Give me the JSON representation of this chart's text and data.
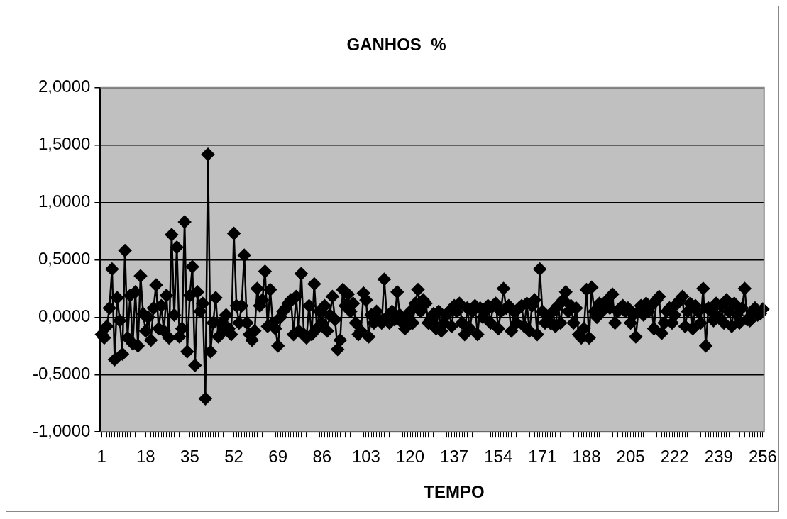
{
  "chart_data": {
    "type": "line",
    "title": "GANHOS  %",
    "xlabel": "TEMPO",
    "categories": [
      "1",
      null,
      null,
      null,
      null,
      null,
      null,
      null,
      null,
      null,
      null,
      null,
      null,
      null,
      null,
      null,
      null,
      "18",
      null,
      null,
      null,
      null,
      null,
      null,
      null,
      null,
      null,
      null,
      null,
      null,
      null,
      null,
      null,
      null,
      "35",
      null,
      null,
      null,
      null,
      null,
      null,
      null,
      null,
      null,
      null,
      null,
      null,
      null,
      null,
      null,
      null,
      "52",
      null,
      null,
      null,
      null,
      null,
      null,
      null,
      null,
      null,
      null,
      null,
      null,
      null,
      null,
      null,
      null,
      "69",
      null,
      null,
      null,
      null,
      null,
      null,
      null,
      null,
      null,
      null,
      null,
      null,
      null,
      null,
      null,
      null,
      "86",
      null,
      null,
      null,
      null,
      null,
      null,
      null,
      null,
      null,
      null,
      null,
      null,
      null,
      null,
      null,
      null,
      "103",
      null,
      null,
      null,
      null,
      null,
      null,
      null,
      null,
      null,
      null,
      null,
      null,
      null,
      null,
      null,
      null,
      "120",
      null,
      null,
      null,
      null,
      null,
      null,
      null,
      null,
      null,
      null,
      null,
      null,
      null,
      null,
      null,
      null,
      "137",
      null,
      null,
      null,
      null,
      null,
      null,
      null,
      null,
      null,
      null,
      null,
      null,
      null,
      null,
      null,
      null,
      "154",
      null,
      null,
      null,
      null,
      null,
      null,
      null,
      null,
      null,
      null,
      null,
      null,
      null,
      null,
      null,
      null,
      "171",
      null,
      null,
      null,
      null,
      null,
      null,
      null,
      null,
      null,
      null,
      null,
      null,
      null,
      null,
      null,
      null,
      "188",
      null,
      null,
      null,
      null,
      null,
      null,
      null,
      null,
      null,
      null,
      null,
      null,
      null,
      null,
      null,
      null,
      "205",
      null,
      null,
      null,
      null,
      null,
      null,
      null,
      null,
      null,
      null,
      null,
      null,
      null,
      null,
      null,
      null,
      "222",
      null,
      null,
      null,
      null,
      null,
      null,
      null,
      null,
      null,
      null,
      null,
      null,
      null,
      null,
      null,
      null,
      "239",
      null,
      null,
      null,
      null,
      null,
      null,
      null,
      null,
      null,
      null,
      null,
      null,
      null,
      null,
      null,
      null,
      "256"
    ],
    "series": [
      {
        "color": "#000000",
        "values": [
          -0.15,
          -0.18,
          -0.08,
          0.08,
          0.42,
          -0.37,
          0.17,
          -0.03,
          -0.32,
          0.58,
          -0.18,
          0.19,
          -0.23,
          0.22,
          -0.25,
          0.36,
          0.03,
          -0.12,
          0.0,
          -0.2,
          0.08,
          0.28,
          -0.1,
          0.1,
          -0.12,
          0.19,
          -0.18,
          0.72,
          0.02,
          0.61,
          -0.17,
          -0.1,
          0.83,
          -0.3,
          0.19,
          0.44,
          -0.42,
          0.22,
          0.05,
          0.12,
          -0.71,
          1.42,
          -0.3,
          -0.05,
          0.17,
          -0.17,
          -0.05,
          -0.12,
          0.02,
          -0.1,
          -0.15,
          0.73,
          0.1,
          -0.05,
          0.1,
          0.54,
          -0.05,
          -0.15,
          -0.2,
          -0.12,
          0.25,
          0.1,
          0.15,
          0.4,
          -0.08,
          0.24,
          -0.05,
          -0.1,
          -0.25,
          0.0,
          0.05,
          0.08,
          0.12,
          0.15,
          -0.15,
          0.18,
          -0.12,
          0.38,
          -0.15,
          -0.18,
          0.1,
          -0.15,
          0.29,
          -0.1,
          0.05,
          -0.05,
          0.1,
          -0.12,
          0.02,
          0.18,
          -0.02,
          -0.28,
          -0.2,
          0.24,
          0.1,
          0.2,
          0.05,
          0.12,
          -0.05,
          -0.15,
          -0.12,
          0.21,
          0.15,
          -0.17,
          0.02,
          -0.05,
          0.05,
          -0.02,
          -0.05,
          0.33,
          0.0,
          -0.05,
          0.05,
          -0.02,
          0.22,
          0.02,
          -0.05,
          -0.1,
          0.02,
          0.05,
          -0.05,
          0.12,
          0.24,
          0.05,
          0.15,
          0.12,
          -0.05,
          -0.02,
          0.03,
          -0.1,
          0.05,
          -0.12,
          -0.05,
          0.02,
          0.05,
          -0.08,
          0.1,
          0.05,
          0.12,
          -0.05,
          -0.15,
          0.08,
          -0.1,
          0.05,
          0.1,
          -0.15,
          0.08,
          0.0,
          0.05,
          0.1,
          -0.05,
          0.1,
          0.12,
          -0.1,
          0.05,
          0.25,
          0.08,
          0.1,
          -0.12,
          0.05,
          -0.05,
          0.08,
          0.1,
          -0.08,
          0.12,
          -0.12,
          0.1,
          0.15,
          -0.15,
          0.42,
          0.05,
          -0.05,
          0.0,
          -0.05,
          0.05,
          -0.08,
          0.1,
          -0.05,
          0.15,
          0.22,
          0.05,
          0.1,
          -0.05,
          0.08,
          -0.15,
          -0.18,
          -0.1,
          0.24,
          -0.18,
          0.26,
          0.05,
          0.0,
          0.12,
          0.05,
          0.1,
          0.15,
          0.08,
          0.2,
          -0.05,
          0.05,
          0.08,
          0.1,
          0.05,
          0.08,
          -0.05,
          0.02,
          -0.17,
          0.05,
          0.1,
          0.02,
          0.12,
          0.05,
          0.1,
          -0.1,
          0.15,
          0.18,
          -0.14,
          -0.05,
          0.05,
          0.08,
          -0.05,
          0.02,
          0.12,
          0.15,
          0.18,
          -0.08,
          0.05,
          0.12,
          -0.1,
          0.1,
          0.05,
          -0.05,
          0.25,
          -0.25,
          0.08,
          0.05,
          -0.03,
          0.12,
          0.0,
          0.1,
          -0.05,
          0.15,
          0.05,
          -0.08,
          0.12,
          0.02,
          -0.05,
          0.08,
          0.25,
          -0.02,
          -0.03,
          0.05,
          0.08,
          0.02,
          0.03,
          0.07
        ]
      }
    ],
    "ylim": [
      -1,
      2
    ],
    "yticks": [
      {
        "value": -1,
        "label": "-1,0000"
      },
      {
        "value": -0.5,
        "label": "-0,5000"
      },
      {
        "value": 0,
        "label": "0,0000"
      },
      {
        "value": 0.5,
        "label": "0,5000"
      },
      {
        "value": 1,
        "label": "1,0000"
      },
      {
        "value": 1.5,
        "label": "1,5000"
      },
      {
        "value": 2,
        "label": "2,0000"
      }
    ],
    "grid": "y",
    "legend": false,
    "marker": "diamond",
    "line_style": "solid"
  }
}
